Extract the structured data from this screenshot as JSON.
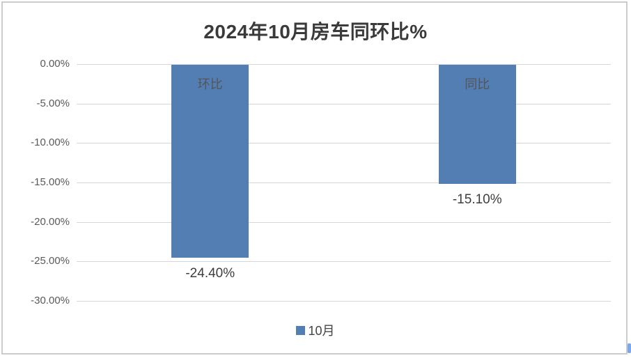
{
  "chart_data": {
    "type": "bar",
    "title": "2024年10月房车同环比%",
    "categories": [
      "环比",
      "同比"
    ],
    "series": [
      {
        "name": "10月",
        "values": [
          -24.4,
          -15.1
        ]
      }
    ],
    "data_labels": [
      "-24.40%",
      "-15.10%"
    ],
    "y_ticks": [
      "0.00%",
      "-5.00%",
      "-10.00%",
      "-15.00%",
      "-20.00%",
      "-25.00%",
      "-30.00%"
    ],
    "ylim": [
      -30,
      0
    ],
    "grid": true,
    "legend_position": "bottom",
    "bar_color": "#527EB4",
    "colors": {
      "gridline": "#d6d6d6",
      "axis_label": "#595959",
      "title": "#3a3a3a",
      "data_label": "#3d3d3d",
      "in_bar_label": "#555555",
      "frame_border": "#cccccc",
      "corner_artifact": "#77a9ee"
    }
  }
}
